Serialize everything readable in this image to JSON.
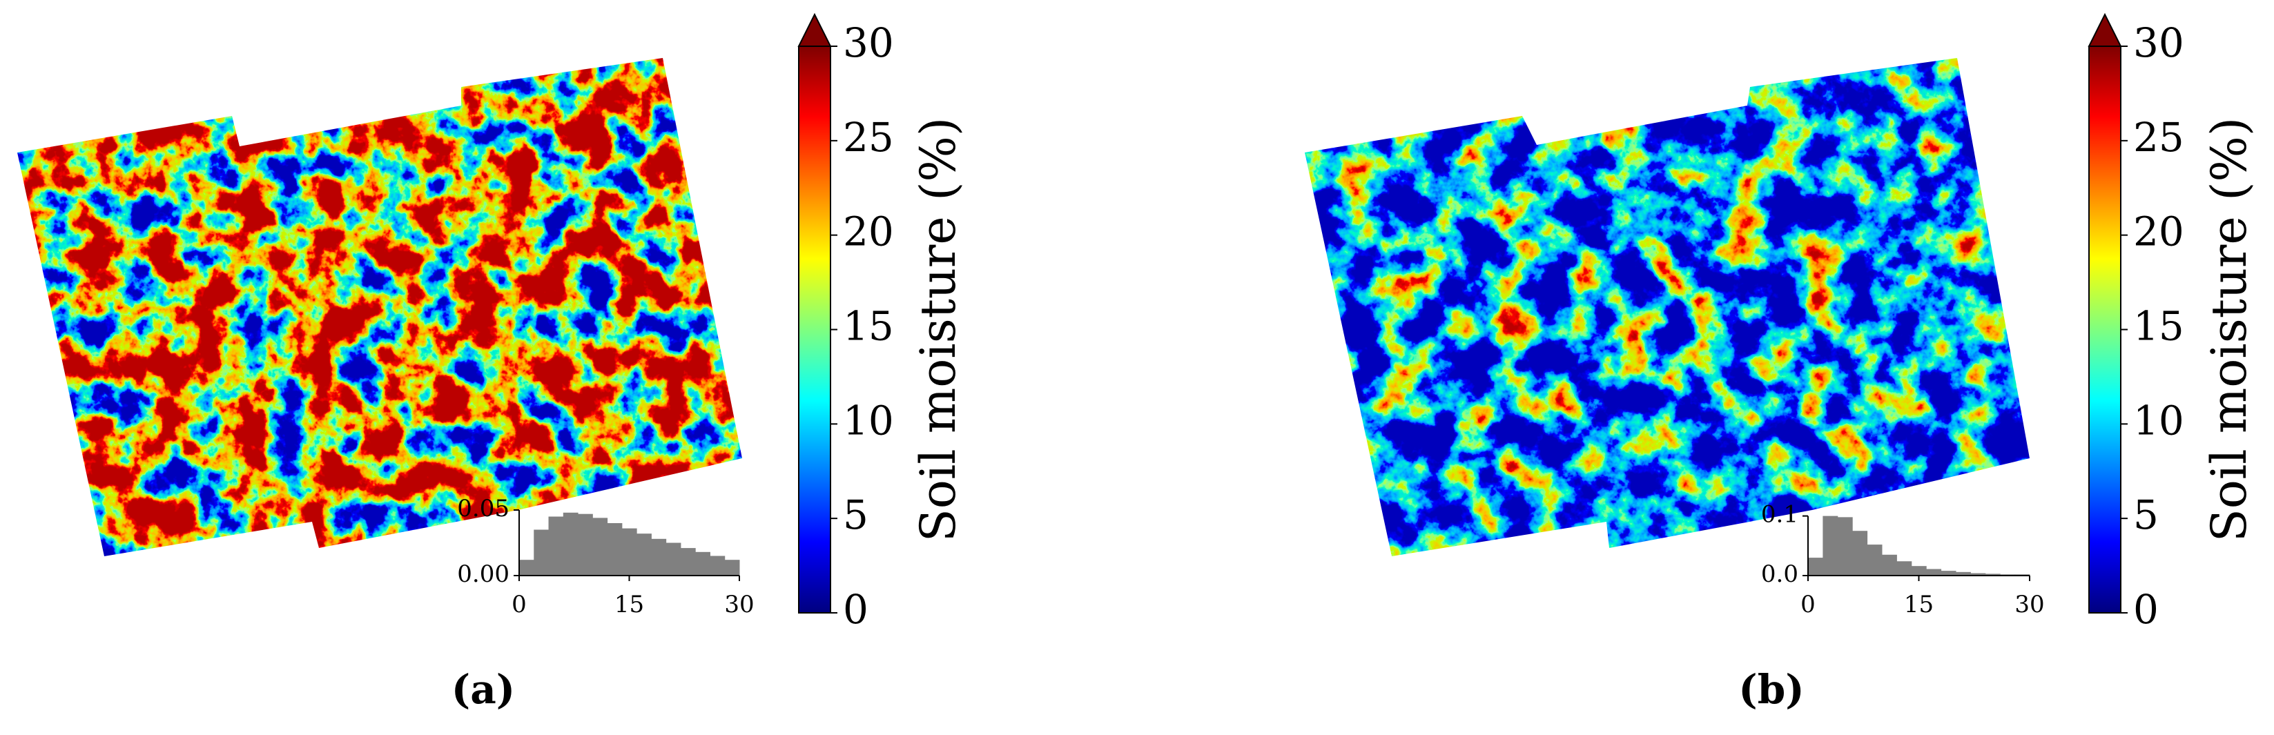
{
  "chart_data": [
    {
      "type": "map",
      "caption": "(a)",
      "colorbar": {
        "label": "Soil moisture (%)",
        "lim": [
          0,
          30
        ],
        "ticks": [
          0,
          5,
          10,
          15,
          20,
          25,
          30
        ],
        "extend": "max",
        "colormap": "jet"
      },
      "inset": {
        "type": "histogram",
        "color": "#808080",
        "bins": [
          0,
          2,
          4,
          6,
          8,
          10,
          12,
          14,
          16,
          18,
          20,
          22,
          24,
          26,
          28,
          30
        ],
        "counts": [
          0.012,
          0.035,
          0.045,
          0.048,
          0.047,
          0.044,
          0.04,
          0.036,
          0.032,
          0.028,
          0.025,
          0.021,
          0.018,
          0.015,
          0.012
        ],
        "xlim": [
          0,
          30
        ],
        "xticks": [
          0,
          15,
          30
        ],
        "ylim": [
          0,
          0.05
        ],
        "yticks": [
          {
            "value": 0,
            "label": "0.00"
          },
          {
            "value": 0.05,
            "label": "0.05"
          }
        ]
      }
    },
    {
      "type": "map",
      "caption": "(b)",
      "colorbar": {
        "label": "Soil moisture (%)",
        "lim": [
          0,
          30
        ],
        "ticks": [
          0,
          5,
          10,
          15,
          20,
          25,
          30
        ],
        "extend": "max",
        "colormap": "jet"
      },
      "inset": {
        "type": "histogram",
        "color": "#808080",
        "bins": [
          0,
          2,
          4,
          6,
          8,
          10,
          12,
          14,
          16,
          18,
          20,
          22,
          24,
          26,
          28,
          30
        ],
        "counts": [
          0.03,
          0.1,
          0.098,
          0.075,
          0.052,
          0.035,
          0.024,
          0.016,
          0.011,
          0.008,
          0.006,
          0.004,
          0.003,
          0.002,
          0.002
        ],
        "xlim": [
          0,
          30
        ],
        "xticks": [
          0,
          15,
          30
        ],
        "ylim": [
          0,
          0.11
        ],
        "yticks": [
          {
            "value": 0,
            "label": "0.0"
          },
          {
            "value": 0.1,
            "label": "0.1"
          }
        ]
      }
    }
  ]
}
